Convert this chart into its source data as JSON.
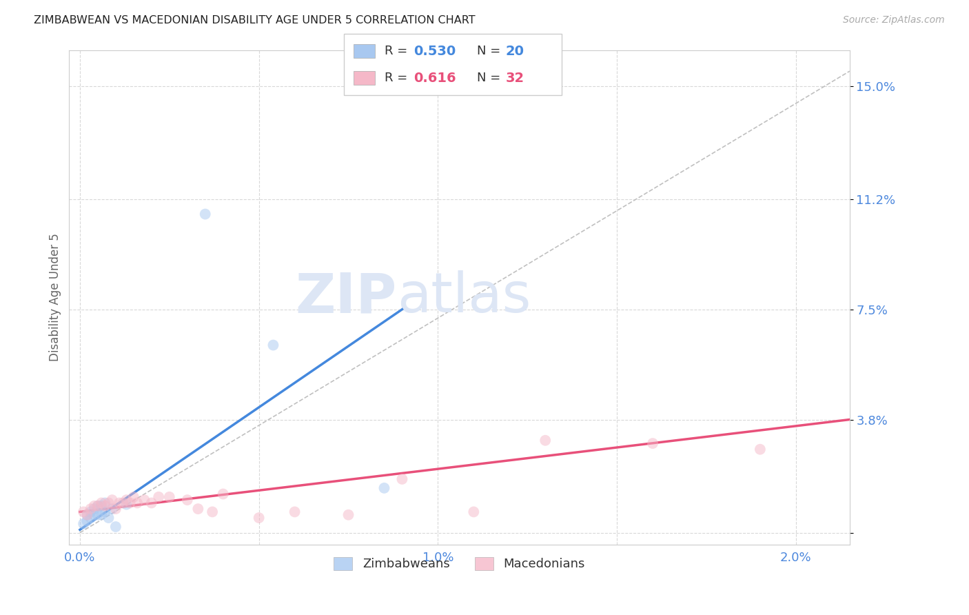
{
  "title": "ZIMBABWEAN VS MACEDONIAN DISABILITY AGE UNDER 5 CORRELATION CHART",
  "source": "Source: ZipAtlas.com",
  "ylabel": "Disability Age Under 5",
  "x_ticks": [
    0.0,
    0.005,
    0.01,
    0.015,
    0.02
  ],
  "x_tick_labels": [
    "0.0%",
    "",
    "1.0%",
    "",
    "2.0%"
  ],
  "y_ticks": [
    0.0,
    0.038,
    0.075,
    0.112,
    0.15
  ],
  "y_tick_labels": [
    "",
    "3.8%",
    "7.5%",
    "11.2%",
    "15.0%"
  ],
  "xlim": [
    -0.0003,
    0.0215
  ],
  "ylim": [
    -0.004,
    0.162
  ],
  "background_color": "#ffffff",
  "grid_color": "#d8d8d8",
  "title_color": "#222222",
  "source_color": "#aaaaaa",
  "watermark_zip": "ZIP",
  "watermark_atlas": "atlas",
  "watermark_color_zip": "#dde6f5",
  "watermark_color_atlas": "#dde6f5",
  "zimbabwean_color": "#a8c8f0",
  "macedonian_color": "#f5b8c8",
  "zimbabwean_line_color": "#4488dd",
  "macedonian_line_color": "#e8507a",
  "identity_line_color": "#c0c0c0",
  "legend_r_zimbabwean": "0.530",
  "legend_n_zimbabwean": "20",
  "legend_r_macedonian": "0.616",
  "legend_n_macedonian": "32",
  "zimbabwean_scatter_x": [
    0.0001,
    0.0002,
    0.0002,
    0.0003,
    0.0003,
    0.0004,
    0.0004,
    0.0005,
    0.0005,
    0.0006,
    0.0006,
    0.0007,
    0.0007,
    0.0008,
    0.0009,
    0.001,
    0.0013,
    0.0035,
    0.0054,
    0.0085
  ],
  "zimbabwean_scatter_y": [
    0.003,
    0.004,
    0.006,
    0.005,
    0.007,
    0.006,
    0.008,
    0.006,
    0.009,
    0.006,
    0.009,
    0.007,
    0.01,
    0.005,
    0.008,
    0.002,
    0.0095,
    0.107,
    0.063,
    0.015
  ],
  "macedonian_scatter_x": [
    0.0001,
    0.0002,
    0.0003,
    0.0004,
    0.0005,
    0.0006,
    0.0007,
    0.0008,
    0.0009,
    0.001,
    0.0011,
    0.0012,
    0.0013,
    0.0014,
    0.0015,
    0.0016,
    0.0018,
    0.002,
    0.0022,
    0.0025,
    0.003,
    0.0033,
    0.0037,
    0.004,
    0.005,
    0.006,
    0.0075,
    0.009,
    0.011,
    0.013,
    0.016,
    0.019
  ],
  "macedonian_scatter_y": [
    0.007,
    0.006,
    0.008,
    0.009,
    0.009,
    0.01,
    0.009,
    0.01,
    0.011,
    0.008,
    0.01,
    0.01,
    0.011,
    0.01,
    0.012,
    0.01,
    0.011,
    0.01,
    0.012,
    0.012,
    0.011,
    0.008,
    0.007,
    0.013,
    0.005,
    0.007,
    0.006,
    0.018,
    0.007,
    0.031,
    0.03,
    0.028
  ],
  "zimbabwean_line_x": [
    0.0,
    0.009
  ],
  "zimbabwean_line_y": [
    0.001,
    0.075
  ],
  "macedonian_line_x": [
    0.0,
    0.0215
  ],
  "macedonian_line_y": [
    0.007,
    0.038
  ],
  "identity_line_x": [
    0.0,
    0.0215
  ],
  "identity_line_y": [
    0.0,
    0.155
  ],
  "scatter_size": 130,
  "scatter_alpha": 0.5,
  "tick_color": "#4d88dd",
  "axis_label_color": "#666666",
  "legend_text_color": "#333333",
  "legend_value_color": "#3366cc"
}
